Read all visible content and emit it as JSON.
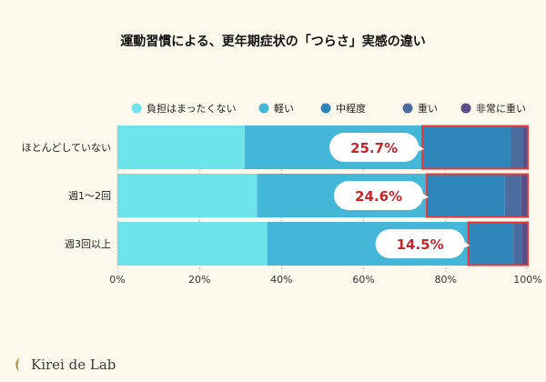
{
  "brand": {
    "name": "Kirei de Lab",
    "logo_icon": "leaf-logo-icon",
    "accent": "#b8924a"
  },
  "chart_data": {
    "type": "bar",
    "orientation": "horizontal",
    "stacked": true,
    "title": "運動習慣による、更年期症状の「つらさ」実感の違い",
    "categories": [
      "ほとんどしていない",
      "週1〜2回",
      "週3回以上"
    ],
    "series": [
      {
        "name": "負担はまったくない",
        "color": "#6de3ea",
        "values": [
          31,
          34,
          36.5
        ]
      },
      {
        "name": "軽い",
        "color": "#44b7d9",
        "values": [
          43.3,
          41.4,
          49
        ]
      },
      {
        "name": "中程度",
        "color": "#2f86ba",
        "values": [
          21.5,
          19,
          11
        ]
      },
      {
        "name": "重い",
        "color": "#4a6c9e",
        "values": [
          3.2,
          4,
          2
        ]
      },
      {
        "name": "非常に重い",
        "color": "#5a4f86",
        "values": [
          1,
          1.6,
          1.5
        ]
      }
    ],
    "callouts": [
      "25.7%",
      "24.6%",
      "14.5%"
    ],
    "highlight_color": "#e43a3a",
    "xlim": [
      0,
      100
    ],
    "xticks": [
      "0%",
      "20%",
      "40%",
      "60%",
      "80%",
      "100%"
    ],
    "legend_position": "top",
    "grid": true
  }
}
